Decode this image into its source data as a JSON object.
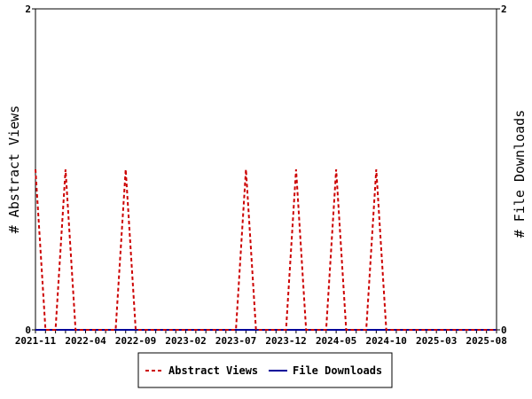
{
  "chart_data": {
    "type": "line",
    "title": "",
    "ylabel_left": "# Abstract Views",
    "ylabel_right": "# File Downloads",
    "ylim": [
      0,
      2
    ],
    "y_ticks_left": [
      "0",
      "2"
    ],
    "y_ticks_right": [
      "0",
      "2"
    ],
    "x_range": [
      "2021-11",
      "2025-09"
    ],
    "x_tick_labels": [
      "2021-11",
      "2022-04",
      "2022-09",
      "2023-02",
      "2023-07",
      "2023-12",
      "2024-05",
      "2024-10",
      "2025-03",
      "2025-08"
    ],
    "x_tick_values": [
      0,
      5,
      10,
      15,
      20,
      25,
      30,
      35,
      40,
      45
    ],
    "months": [
      "2021-11",
      "2021-12",
      "2022-01",
      "2022-02",
      "2022-03",
      "2022-04",
      "2022-05",
      "2022-06",
      "2022-07",
      "2022-08",
      "2022-09",
      "2022-10",
      "2022-11",
      "2022-12",
      "2023-01",
      "2023-02",
      "2023-03",
      "2023-04",
      "2023-05",
      "2023-06",
      "2023-07",
      "2023-08",
      "2023-09",
      "2023-10",
      "2023-11",
      "2023-12",
      "2024-01",
      "2024-02",
      "2024-03",
      "2024-04",
      "2024-05",
      "2024-06",
      "2024-07",
      "2024-08",
      "2024-09",
      "2024-10",
      "2024-11",
      "2024-12",
      "2025-01",
      "2025-02",
      "2025-03",
      "2025-04",
      "2025-05",
      "2025-06",
      "2025-07",
      "2025-08",
      "2025-09"
    ],
    "grid": false,
    "legend_position": "bottom",
    "series": [
      {
        "name": "Abstract Views",
        "color": "#cc0000",
        "style": "dashed",
        "axis": "left",
        "values": [
          1,
          0,
          0,
          1,
          0,
          0,
          0,
          0,
          0,
          1,
          0,
          0,
          0,
          0,
          0,
          0,
          0,
          0,
          0,
          0,
          0,
          1,
          0,
          0,
          0,
          0,
          1,
          0,
          0,
          0,
          1,
          0,
          0,
          0,
          1,
          0,
          0,
          0,
          0,
          0,
          0,
          0,
          0,
          0,
          0,
          0,
          0
        ]
      },
      {
        "name": "File Downloads",
        "color": "#000099",
        "style": "solid",
        "axis": "right",
        "values": [
          0,
          0,
          0,
          0,
          0,
          0,
          0,
          0,
          0,
          0,
          0,
          0,
          0,
          0,
          0,
          0,
          0,
          0,
          0,
          0,
          0,
          0,
          0,
          0,
          0,
          0,
          0,
          0,
          0,
          0,
          0,
          0,
          0,
          0,
          0,
          0,
          0,
          0,
          0,
          0,
          0,
          0,
          0,
          0,
          0,
          0,
          0
        ]
      }
    ]
  }
}
